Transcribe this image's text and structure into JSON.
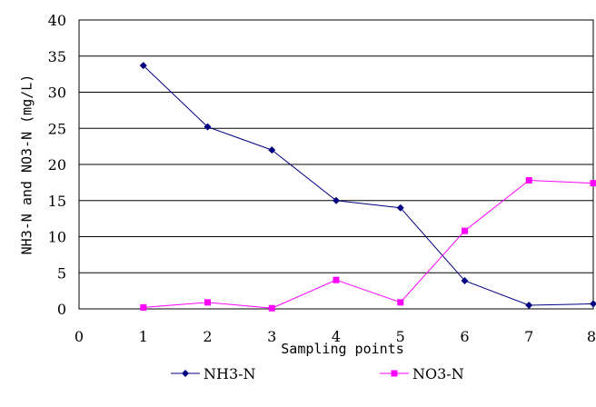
{
  "chart_data": {
    "type": "line",
    "xlabel": "Sampling points",
    "ylabel": "NH3-N and NO3-N (mg/L)",
    "xlim": [
      0,
      8
    ],
    "ylim": [
      0,
      40
    ],
    "xticks": [
      0,
      1,
      2,
      3,
      4,
      5,
      6,
      7,
      8
    ],
    "yticks": [
      0,
      5,
      10,
      15,
      20,
      25,
      30,
      35,
      40
    ],
    "grid": "horizontal",
    "legend_position": "bottom",
    "x": [
      1,
      2,
      3,
      4,
      5,
      6,
      7,
      8
    ],
    "series": [
      {
        "name": "NH3-N",
        "color": "#000080",
        "marker": "diamond",
        "values": [
          33.7,
          25.2,
          22.0,
          15.0,
          14.0,
          3.9,
          0.5,
          0.7
        ]
      },
      {
        "name": "NO3-N",
        "color": "#ff00ff",
        "marker": "square",
        "values": [
          0.2,
          0.9,
          0.1,
          4.0,
          0.9,
          10.8,
          17.8,
          17.4
        ]
      }
    ]
  }
}
